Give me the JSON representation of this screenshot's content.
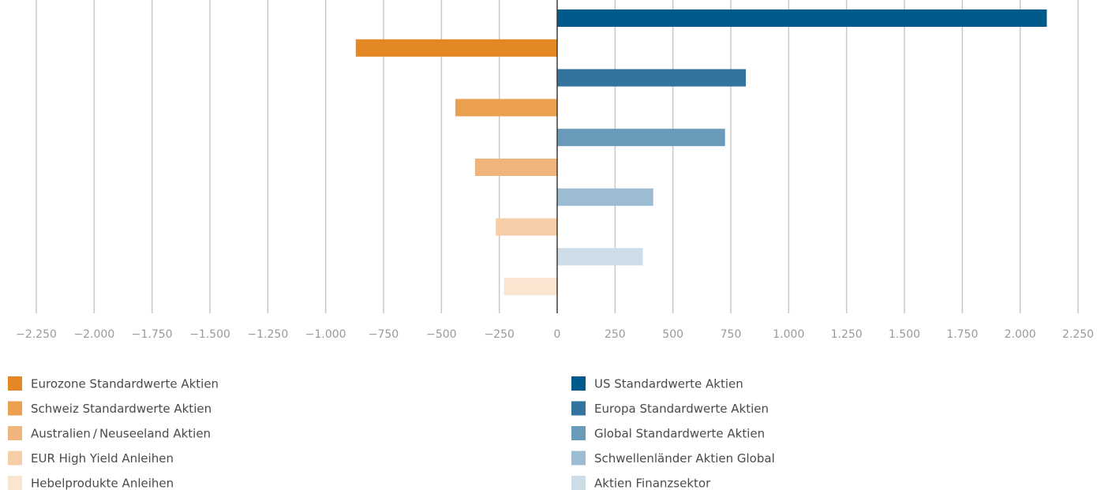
{
  "chart_data": {
    "type": "bar",
    "orientation": "horizontal",
    "xlim": [
      -2250,
      2250
    ],
    "x_ticks": [
      -2250,
      -2000,
      -1750,
      -1500,
      -1250,
      -1000,
      -750,
      -500,
      -250,
      0,
      250,
      500,
      750,
      1000,
      1250,
      1500,
      1750,
      2000,
      2250
    ],
    "x_tick_labels": [
      "−2.250",
      "−2.000",
      "−1.750",
      "−1.500",
      "−1.250",
      "−1.000",
      "−750",
      "−500",
      "−250",
      "0",
      "250",
      "500",
      "750",
      "1.000",
      "1.250",
      "1.500",
      "1.750",
      "2.000",
      "2.250"
    ],
    "grid": true,
    "legend_position": "bottom",
    "series": [
      {
        "name": "US Standardwerte Aktien",
        "value": 2115,
        "color": "#005a8c"
      },
      {
        "name": "Eurozone Standardwerte Aktien",
        "value": -870,
        "color": "#e38825"
      },
      {
        "name": "Europa Standardwerte Aktien",
        "value": 815,
        "color": "#33749f"
      },
      {
        "name": "Schweiz Standardwerte Aktien",
        "value": -440,
        "color": "#eba04f"
      },
      {
        "name": "Global Standardwerte Aktien",
        "value": 725,
        "color": "#6a9ab9"
      },
      {
        "name": "Australien / Neuseeland Aktien",
        "value": -355,
        "color": "#efb57c"
      },
      {
        "name": "Schwellenländer Aktien Global",
        "value": 415,
        "color": "#9bbcd2"
      },
      {
        "name": "EUR High Yield Anleihen",
        "value": -265,
        "color": "#f5cda6"
      },
      {
        "name": "Aktien Finanzsektor",
        "value": 370,
        "color": "#cddde8"
      },
      {
        "name": "Hebelprodukte Anleihen",
        "value": -230,
        "color": "#fae5d0"
      }
    ],
    "legend_columns": [
      [
        "Eurozone Standardwerte Aktien",
        "Schweiz Standardwerte Aktien",
        "Australien / Neuseeland Aktien",
        "EUR High Yield Anleihen",
        "Hebelprodukte Anleihen"
      ],
      [
        "US Standardwerte Aktien",
        "Europa Standardwerte Aktien",
        "Global Standardwerte Aktien",
        "Schwellenländer Aktien Global",
        "Aktien Finanzsektor"
      ]
    ]
  }
}
